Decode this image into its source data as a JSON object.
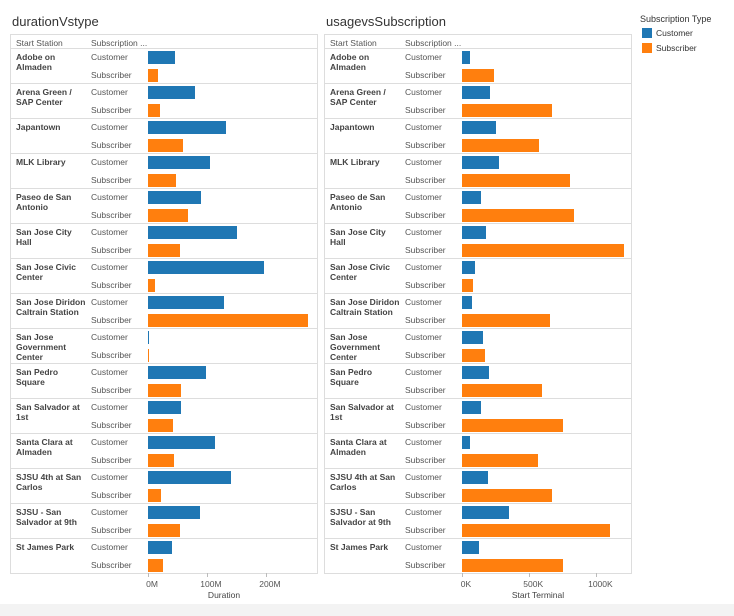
{
  "legend": {
    "title": "Subscription Type"
  },
  "chart_data": [
    {
      "type": "bar",
      "title": "durationVstype",
      "row_headers": [
        "Start Station",
        "Subscription ..."
      ],
      "categories": [
        "Adobe on Almaden",
        "Arena Green / SAP Center",
        "Japantown",
        "MLK Library",
        "Paseo de San Antonio",
        "San Jose City Hall",
        "San Jose Civic Center",
        "San Jose Diridon Caltrain Station",
        "San Jose Government Center",
        "San Pedro Square",
        "San Salvador at 1st",
        "Santa Clara at Almaden",
        "SJSU 4th at San Carlos",
        "SJSU - San Salvador at 9th",
        "St James Park"
      ],
      "series": [
        {
          "name": "Customer",
          "color": "#1f77b4",
          "values": [
            46000000,
            80000000,
            132000000,
            105000000,
            90000000,
            151000000,
            197000000,
            129000000,
            1000000,
            98000000,
            56000000,
            114000000,
            141000000,
            88000000,
            41000000
          ]
        },
        {
          "name": "Subscriber",
          "color": "#ff7f0e",
          "values": [
            17000000,
            20000000,
            59000000,
            47000000,
            68000000,
            54000000,
            12000000,
            271000000,
            1000000,
            56000000,
            42000000,
            44000000,
            22000000,
            54000000,
            25000000
          ]
        }
      ],
      "xlabel": "Duration",
      "xlim": [
        0,
        285000000
      ],
      "xticks": [
        {
          "value": 0,
          "label": "0M"
        },
        {
          "value": 100000000,
          "label": "100M"
        },
        {
          "value": 200000000,
          "label": "200M"
        }
      ]
    },
    {
      "type": "bar",
      "title": "usagevsSubscription",
      "row_headers": [
        "Start Station",
        "Subscription ..."
      ],
      "categories": [
        "Adobe on Almaden",
        "Arena Green / SAP Center",
        "Japantown",
        "MLK Library",
        "Paseo de San Antonio",
        "San Jose City Hall",
        "San Jose Civic Center",
        "San Jose Diridon Caltrain Station",
        "San Jose Government Center",
        "San Pedro Square",
        "San Salvador at 1st",
        "Santa Clara at Almaden",
        "SJSU 4th at San Carlos",
        "SJSU - San Salvador at 9th",
        "St James Park"
      ],
      "series": [
        {
          "name": "Customer",
          "color": "#1f77b4",
          "values": [
            59000,
            206000,
            250000,
            272000,
            140000,
            176000,
            96000,
            74000,
            154000,
            199000,
            140000,
            59000,
            191000,
            353000,
            125000
          ]
        },
        {
          "name": "Subscriber",
          "color": "#ff7f0e",
          "values": [
            235000,
            669000,
            574000,
            801000,
            831000,
            1206000,
            81000,
            654000,
            169000,
            596000,
            750000,
            566000,
            669000,
            1103000,
            750000
          ]
        }
      ],
      "xlabel": "Start Terminal",
      "xlim": [
        0,
        1250000
      ],
      "xticks": [
        {
          "value": 0,
          "label": "0K"
        },
        {
          "value": 500000,
          "label": "500K"
        },
        {
          "value": 1000000,
          "label": "1000K"
        }
      ]
    }
  ]
}
